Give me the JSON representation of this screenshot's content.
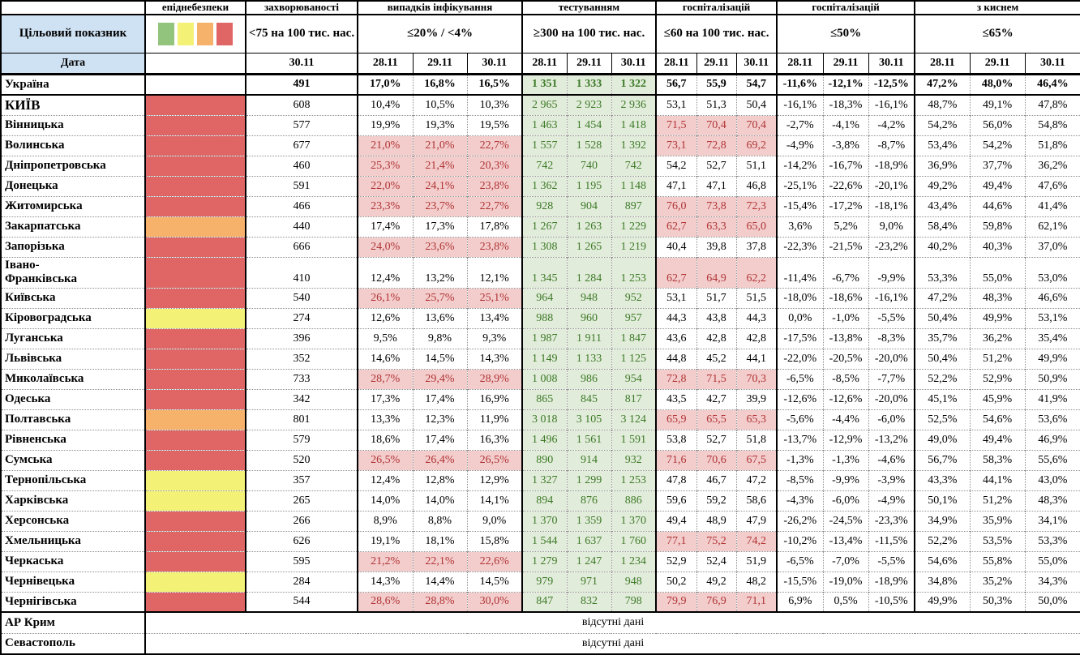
{
  "table": {
    "header": {
      "row1": [
        "",
        "епіднебезпеки",
        "захворюваності",
        "випадків інфікування",
        "тестуванням",
        "госпіталізацій",
        "госпіталізацій",
        "з киснем"
      ],
      "target_label": "Цільовий показник",
      "date_label": "Дата",
      "targets": {
        "morbidity": "<75 на 100 тис. нас.",
        "infection": "≤20% / <4%",
        "testing": "≥300 на 100 тис. нас.",
        "hosp_per_capita": "≤60 на 100 тис. нас.",
        "hosp_dynamics": "≤50%",
        "oxygen": "≤65%"
      },
      "morbidity_date": "30.11",
      "dates": [
        "28.11",
        "29.11",
        "30.11"
      ]
    },
    "legend_colors": [
      "#93c47d",
      "#f4f276",
      "#f6b26b",
      "#e06666"
    ],
    "danger_palette": {
      "red": "#e06666",
      "orange": "#f6b26b",
      "yellow": "#f4f276",
      "none": "#ffffff"
    },
    "cell_colors": {
      "good_bg": "#e2ecda",
      "good_text": "#3c7a28",
      "bad_bg": "#f3cccc",
      "bad_text": "#b03434",
      "header_bg": "#cfe2f3"
    },
    "rows": [
      {
        "region": "Україна",
        "danger": "none",
        "bold": true,
        "morbidity": "491",
        "infection": [
          "17,0%",
          "16,8%",
          "16,5%"
        ],
        "testing": [
          "1 351",
          "1 333",
          "1 322"
        ],
        "hosp": [
          "56,7",
          "55,9",
          "54,7"
        ],
        "hosp_dynamics": [
          "-11,6%",
          "-12,1%",
          "-12,5%"
        ],
        "oxygen": [
          "47,2%",
          "48,0%",
          "46,4%"
        ]
      },
      {
        "region": "КИЇВ",
        "danger": "red",
        "big": true,
        "morbidity": "608",
        "infection": [
          "10,4%",
          "10,5%",
          "10,3%"
        ],
        "testing": [
          "2 965",
          "2 923",
          "2 936"
        ],
        "hosp": [
          "53,1",
          "51,3",
          "50,4"
        ],
        "hosp_dynamics": [
          "-16,1%",
          "-18,3%",
          "-16,1%"
        ],
        "oxygen": [
          "48,7%",
          "49,1%",
          "47,8%"
        ]
      },
      {
        "region": "Вінницька",
        "danger": "red",
        "morbidity": "577",
        "infection": [
          "19,9%",
          "19,3%",
          "19,5%"
        ],
        "testing": [
          "1 463",
          "1 454",
          "1 418"
        ],
        "hosp": [
          "71,5",
          "70,4",
          "70,4"
        ],
        "hosp_dynamics": [
          "-2,7%",
          "-4,1%",
          "-4,2%"
        ],
        "oxygen": [
          "54,2%",
          "56,0%",
          "54,8%"
        ]
      },
      {
        "region": "Волинська",
        "danger": "red",
        "morbidity": "677",
        "infection": [
          "21,0%",
          "21,0%",
          "22,7%"
        ],
        "testing": [
          "1 557",
          "1 528",
          "1 392"
        ],
        "hosp": [
          "73,1",
          "72,8",
          "69,2"
        ],
        "hosp_dynamics": [
          "-4,9%",
          "-3,8%",
          "-8,7%"
        ],
        "oxygen": [
          "53,4%",
          "54,2%",
          "51,8%"
        ]
      },
      {
        "region": "Дніпропетровська",
        "danger": "red",
        "morbidity": "460",
        "infection": [
          "25,3%",
          "21,4%",
          "20,3%"
        ],
        "testing": [
          "742",
          "740",
          "742"
        ],
        "hosp": [
          "54,2",
          "52,7",
          "51,1"
        ],
        "hosp_dynamics": [
          "-14,2%",
          "-16,7%",
          "-18,9%"
        ],
        "oxygen": [
          "36,9%",
          "37,7%",
          "36,2%"
        ]
      },
      {
        "region": "Донецька",
        "danger": "red",
        "morbidity": "591",
        "infection": [
          "22,0%",
          "24,1%",
          "23,8%"
        ],
        "testing": [
          "1 362",
          "1 195",
          "1 148"
        ],
        "hosp": [
          "47,1",
          "47,1",
          "46,8"
        ],
        "hosp_dynamics": [
          "-25,1%",
          "-22,6%",
          "-20,1%"
        ],
        "oxygen": [
          "49,2%",
          "49,4%",
          "47,6%"
        ]
      },
      {
        "region": "Житомирська",
        "danger": "red",
        "morbidity": "466",
        "infection": [
          "23,3%",
          "23,7%",
          "22,7%"
        ],
        "testing": [
          "928",
          "904",
          "897"
        ],
        "hosp": [
          "76,0",
          "73,8",
          "72,3"
        ],
        "hosp_dynamics": [
          "-15,4%",
          "-17,2%",
          "-18,1%"
        ],
        "oxygen": [
          "43,4%",
          "44,6%",
          "41,4%"
        ]
      },
      {
        "region": "Закарпатська",
        "danger": "orange",
        "morbidity": "440",
        "infection": [
          "17,4%",
          "17,3%",
          "17,8%"
        ],
        "testing": [
          "1 267",
          "1 263",
          "1 229"
        ],
        "hosp": [
          "62,7",
          "63,3",
          "65,0"
        ],
        "hosp_dynamics": [
          "3,6%",
          "5,2%",
          "9,0%"
        ],
        "oxygen": [
          "58,4%",
          "59,8%",
          "62,1%"
        ]
      },
      {
        "region": "Запорізька",
        "danger": "red",
        "morbidity": "666",
        "infection": [
          "24,0%",
          "23,6%",
          "23,8%"
        ],
        "testing": [
          "1 308",
          "1 265",
          "1 219"
        ],
        "hosp": [
          "40,4",
          "39,8",
          "37,8"
        ],
        "hosp_dynamics": [
          "-22,3%",
          "-21,5%",
          "-23,2%"
        ],
        "oxygen": [
          "40,2%",
          "40,3%",
          "37,0%"
        ]
      },
      {
        "region": "Івано-\nФранківська",
        "danger": "red",
        "tall": true,
        "morbidity": "410",
        "infection": [
          "12,4%",
          "13,2%",
          "12,1%"
        ],
        "testing": [
          "1 345",
          "1 284",
          "1 253"
        ],
        "hosp": [
          "62,7",
          "64,9",
          "62,2"
        ],
        "hosp_dynamics": [
          "-11,4%",
          "-6,7%",
          "-9,9%"
        ],
        "oxygen": [
          "53,3%",
          "55,0%",
          "53,0%"
        ]
      },
      {
        "region": "Київська",
        "danger": "red",
        "morbidity": "540",
        "infection": [
          "26,1%",
          "25,7%",
          "25,1%"
        ],
        "testing": [
          "964",
          "948",
          "952"
        ],
        "hosp": [
          "53,1",
          "51,7",
          "51,5"
        ],
        "hosp_dynamics": [
          "-18,0%",
          "-18,6%",
          "-16,1%"
        ],
        "oxygen": [
          "47,2%",
          "48,3%",
          "46,6%"
        ]
      },
      {
        "region": "Кіровоградська",
        "danger": "yellow",
        "morbidity": "274",
        "infection": [
          "12,6%",
          "13,6%",
          "13,4%"
        ],
        "testing": [
          "988",
          "960",
          "957"
        ],
        "hosp": [
          "44,3",
          "43,8",
          "44,3"
        ],
        "hosp_dynamics": [
          "0,0%",
          "-1,0%",
          "-5,5%"
        ],
        "oxygen": [
          "50,4%",
          "49,9%",
          "53,1%"
        ]
      },
      {
        "region": "Луганська",
        "danger": "red",
        "morbidity": "396",
        "infection": [
          "9,5%",
          "9,8%",
          "9,3%"
        ],
        "testing": [
          "1 987",
          "1 911",
          "1 847"
        ],
        "hosp": [
          "43,6",
          "42,8",
          "42,8"
        ],
        "hosp_dynamics": [
          "-17,5%",
          "-13,8%",
          "-8,3%"
        ],
        "oxygen": [
          "35,7%",
          "36,2%",
          "35,4%"
        ]
      },
      {
        "region": "Львівська",
        "danger": "red",
        "morbidity": "352",
        "infection": [
          "14,6%",
          "14,5%",
          "14,3%"
        ],
        "testing": [
          "1 149",
          "1 133",
          "1 125"
        ],
        "hosp": [
          "44,8",
          "45,2",
          "44,1"
        ],
        "hosp_dynamics": [
          "-22,0%",
          "-20,5%",
          "-20,0%"
        ],
        "oxygen": [
          "50,4%",
          "51,2%",
          "49,9%"
        ]
      },
      {
        "region": "Миколаївська",
        "danger": "red",
        "morbidity": "733",
        "infection": [
          "28,7%",
          "29,4%",
          "28,9%"
        ],
        "testing": [
          "1 008",
          "986",
          "954"
        ],
        "hosp": [
          "72,8",
          "71,5",
          "70,3"
        ],
        "hosp_dynamics": [
          "-6,5%",
          "-8,5%",
          "-7,7%"
        ],
        "oxygen": [
          "52,2%",
          "52,9%",
          "50,9%"
        ]
      },
      {
        "region": "Одеська",
        "danger": "red",
        "morbidity": "342",
        "infection": [
          "17,3%",
          "17,4%",
          "16,9%"
        ],
        "testing": [
          "865",
          "845",
          "817"
        ],
        "hosp": [
          "43,5",
          "42,7",
          "39,9"
        ],
        "hosp_dynamics": [
          "-12,6%",
          "-12,6%",
          "-20,0%"
        ],
        "oxygen": [
          "45,1%",
          "45,9%",
          "41,9%"
        ]
      },
      {
        "region": "Полтавська",
        "danger": "orange",
        "morbidity": "801",
        "infection": [
          "13,3%",
          "12,3%",
          "11,9%"
        ],
        "testing": [
          "3 018",
          "3 105",
          "3 124"
        ],
        "hosp": [
          "65,9",
          "65,5",
          "65,3"
        ],
        "hosp_dynamics": [
          "-5,6%",
          "-4,4%",
          "-6,0%"
        ],
        "oxygen": [
          "52,5%",
          "54,6%",
          "53,6%"
        ]
      },
      {
        "region": "Рівненська",
        "danger": "red",
        "morbidity": "579",
        "infection": [
          "18,6%",
          "17,4%",
          "16,3%"
        ],
        "testing": [
          "1 496",
          "1 561",
          "1 591"
        ],
        "hosp": [
          "53,8",
          "52,7",
          "51,8"
        ],
        "hosp_dynamics": [
          "-13,7%",
          "-12,9%",
          "-13,2%"
        ],
        "oxygen": [
          "49,0%",
          "49,4%",
          "46,9%"
        ]
      },
      {
        "region": "Сумська",
        "danger": "red",
        "morbidity": "520",
        "infection": [
          "26,5%",
          "26,4%",
          "26,5%"
        ],
        "testing": [
          "890",
          "914",
          "932"
        ],
        "hosp": [
          "71,6",
          "70,6",
          "67,5"
        ],
        "hosp_dynamics": [
          "-1,3%",
          "-1,3%",
          "-4,6%"
        ],
        "oxygen": [
          "56,7%",
          "58,3%",
          "55,6%"
        ]
      },
      {
        "region": "Тернопільська",
        "danger": "yellow",
        "morbidity": "357",
        "infection": [
          "12,4%",
          "12,8%",
          "12,9%"
        ],
        "testing": [
          "1 327",
          "1 299",
          "1 253"
        ],
        "hosp": [
          "47,8",
          "46,7",
          "47,2"
        ],
        "hosp_dynamics": [
          "-8,5%",
          "-9,9%",
          "-3,9%"
        ],
        "oxygen": [
          "43,3%",
          "44,1%",
          "43,0%"
        ]
      },
      {
        "region": "Харківська",
        "danger": "yellow",
        "morbidity": "265",
        "infection": [
          "14,0%",
          "14,0%",
          "14,1%"
        ],
        "testing": [
          "894",
          "876",
          "886"
        ],
        "hosp": [
          "59,6",
          "59,2",
          "58,6"
        ],
        "hosp_dynamics": [
          "-4,3%",
          "-6,0%",
          "-4,9%"
        ],
        "oxygen": [
          "50,1%",
          "51,2%",
          "48,3%"
        ]
      },
      {
        "region": "Херсонська",
        "danger": "red",
        "morbidity": "266",
        "infection": [
          "8,9%",
          "8,8%",
          "9,0%"
        ],
        "testing": [
          "1 370",
          "1 359",
          "1 370"
        ],
        "hosp": [
          "49,4",
          "48,9",
          "47,9"
        ],
        "hosp_dynamics": [
          "-26,2%",
          "-24,5%",
          "-23,3%"
        ],
        "oxygen": [
          "34,9%",
          "35,9%",
          "34,1%"
        ]
      },
      {
        "region": "Хмельницька",
        "danger": "red",
        "morbidity": "626",
        "infection": [
          "19,1%",
          "18,1%",
          "15,8%"
        ],
        "testing": [
          "1 544",
          "1 637",
          "1 760"
        ],
        "hosp": [
          "77,1",
          "75,2",
          "74,2"
        ],
        "hosp_dynamics": [
          "-10,2%",
          "-13,4%",
          "-11,5%"
        ],
        "oxygen": [
          "52,2%",
          "53,5%",
          "53,3%"
        ]
      },
      {
        "region": "Черкаська",
        "danger": "red",
        "morbidity": "595",
        "infection": [
          "21,2%",
          "22,1%",
          "22,6%"
        ],
        "testing": [
          "1 279",
          "1 247",
          "1 234"
        ],
        "hosp": [
          "52,9",
          "52,4",
          "51,9"
        ],
        "hosp_dynamics": [
          "-6,5%",
          "-7,0%",
          "-5,5%"
        ],
        "oxygen": [
          "54,6%",
          "55,8%",
          "55,0%"
        ]
      },
      {
        "region": "Чернівецька",
        "danger": "yellow",
        "morbidity": "284",
        "infection": [
          "14,3%",
          "14,4%",
          "14,5%"
        ],
        "testing": [
          "979",
          "971",
          "948"
        ],
        "hosp": [
          "50,2",
          "49,2",
          "48,2"
        ],
        "hosp_dynamics": [
          "-15,5%",
          "-19,0%",
          "-18,9%"
        ],
        "oxygen": [
          "34,8%",
          "35,2%",
          "34,3%"
        ]
      },
      {
        "region": "Чернігівська",
        "danger": "red",
        "morbidity": "544",
        "infection": [
          "28,6%",
          "28,8%",
          "30,0%"
        ],
        "testing": [
          "847",
          "832",
          "798"
        ],
        "hosp": [
          "79,9",
          "76,9",
          "71,1"
        ],
        "hosp_dynamics": [
          "6,9%",
          "0,5%",
          "-10,5%"
        ],
        "oxygen": [
          "49,9%",
          "50,3%",
          "50,0%"
        ]
      }
    ],
    "no_data_rows": [
      {
        "region": "АР Крим",
        "text": "відсутні дані"
      },
      {
        "region": "Севастополь",
        "text": "відсутні дані"
      }
    ]
  }
}
